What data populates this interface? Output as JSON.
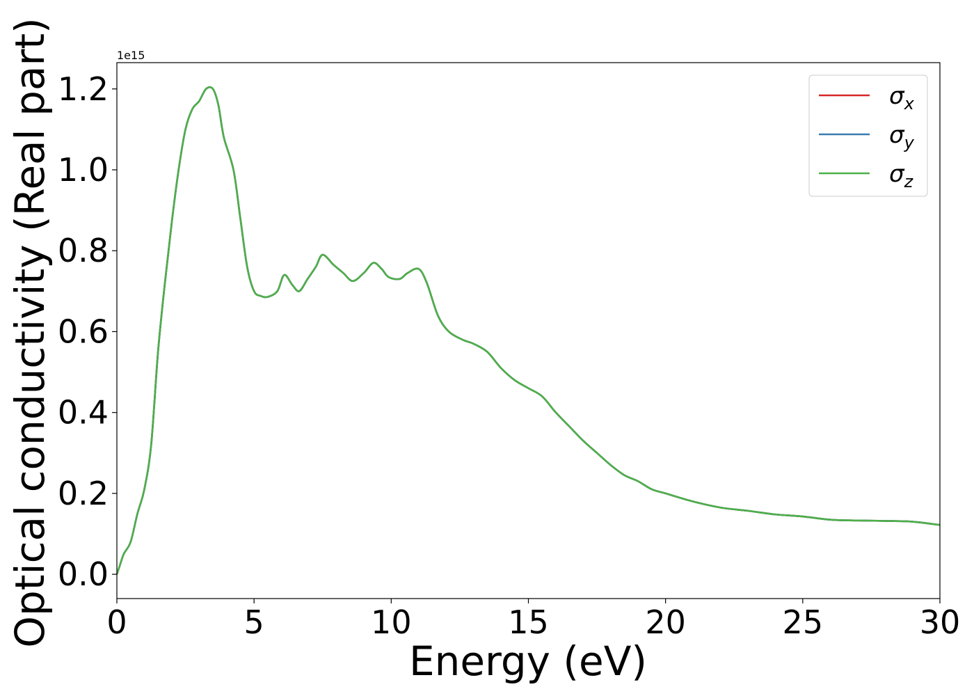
{
  "chart_data": {
    "type": "line",
    "xlabel": "Energy (eV)",
    "ylabel": "Optical conductivity (Real part)",
    "y_offset_text": "1e15",
    "xlim": [
      0,
      30
    ],
    "ylim": [
      -0.06,
      1.265
    ],
    "y_scale_factor": 1000000000000000.0,
    "x_ticks": [
      0,
      5,
      10,
      15,
      20,
      25,
      30
    ],
    "x_tick_labels": [
      "0",
      "5",
      "10",
      "15",
      "20",
      "25",
      "30"
    ],
    "y_ticks": [
      0.0,
      0.2,
      0.4,
      0.6,
      0.8,
      1.0,
      1.2
    ],
    "y_tick_labels": [
      "0.0",
      "0.2",
      "0.4",
      "0.6",
      "0.8",
      "1.0",
      "1.2"
    ],
    "grid": false,
    "legend_placement": "top-right",
    "x": [
      0,
      0.1,
      0.25,
      0.5,
      0.75,
      1.0,
      1.25,
      1.5,
      1.75,
      2.0,
      2.25,
      2.5,
      2.75,
      3.0,
      3.25,
      3.5,
      3.7,
      3.9,
      4.25,
      4.5,
      4.75,
      5.0,
      5.25,
      5.5,
      5.85,
      6.1,
      6.4,
      6.65,
      6.95,
      7.25,
      7.5,
      7.9,
      8.25,
      8.6,
      9.0,
      9.35,
      9.65,
      9.9,
      10.3,
      10.6,
      11.0,
      11.3,
      11.7,
      12.1,
      12.6,
      13.0,
      13.5,
      14.0,
      14.5,
      15.0,
      15.5,
      16.0,
      16.5,
      17.0,
      17.5,
      18.0,
      18.5,
      19.0,
      19.5,
      20.0,
      21.0,
      22.0,
      23.0,
      24.0,
      25.0,
      26.0,
      27.0,
      28.0,
      29.0,
      30.0
    ],
    "series": [
      {
        "name": "σx",
        "color": "#d62728",
        "values": [
          0.0,
          0.02,
          0.05,
          0.08,
          0.15,
          0.21,
          0.32,
          0.55,
          0.72,
          0.87,
          1.0,
          1.1,
          1.15,
          1.17,
          1.2,
          1.2,
          1.16,
          1.08,
          1.0,
          0.88,
          0.76,
          0.7,
          0.688,
          0.686,
          0.7,
          0.74,
          0.715,
          0.7,
          0.73,
          0.76,
          0.79,
          0.765,
          0.745,
          0.725,
          0.745,
          0.77,
          0.755,
          0.735,
          0.73,
          0.745,
          0.755,
          0.72,
          0.64,
          0.6,
          0.58,
          0.57,
          0.55,
          0.51,
          0.48,
          0.46,
          0.44,
          0.4,
          0.365,
          0.33,
          0.3,
          0.27,
          0.245,
          0.23,
          0.21,
          0.2,
          0.18,
          0.165,
          0.157,
          0.148,
          0.143,
          0.135,
          0.133,
          0.132,
          0.13,
          0.122
        ]
      },
      {
        "name": "σy",
        "color": "#3a7bb0",
        "values": [
          0.0,
          0.02,
          0.05,
          0.08,
          0.15,
          0.21,
          0.32,
          0.55,
          0.72,
          0.87,
          1.0,
          1.1,
          1.15,
          1.17,
          1.2,
          1.2,
          1.16,
          1.08,
          1.0,
          0.88,
          0.76,
          0.7,
          0.688,
          0.686,
          0.7,
          0.74,
          0.715,
          0.7,
          0.73,
          0.76,
          0.79,
          0.765,
          0.745,
          0.725,
          0.745,
          0.77,
          0.755,
          0.735,
          0.73,
          0.745,
          0.755,
          0.72,
          0.64,
          0.6,
          0.58,
          0.57,
          0.55,
          0.51,
          0.48,
          0.46,
          0.44,
          0.4,
          0.365,
          0.33,
          0.3,
          0.27,
          0.245,
          0.23,
          0.21,
          0.2,
          0.18,
          0.165,
          0.157,
          0.148,
          0.143,
          0.135,
          0.133,
          0.132,
          0.13,
          0.122
        ]
      },
      {
        "name": "σz",
        "color": "#4daf4a",
        "values": [
          0.0,
          0.02,
          0.05,
          0.08,
          0.15,
          0.21,
          0.32,
          0.55,
          0.72,
          0.87,
          1.0,
          1.1,
          1.15,
          1.17,
          1.2,
          1.2,
          1.16,
          1.08,
          1.0,
          0.88,
          0.76,
          0.7,
          0.688,
          0.686,
          0.7,
          0.74,
          0.715,
          0.7,
          0.73,
          0.76,
          0.79,
          0.765,
          0.745,
          0.725,
          0.745,
          0.77,
          0.755,
          0.735,
          0.73,
          0.745,
          0.755,
          0.72,
          0.64,
          0.6,
          0.58,
          0.57,
          0.55,
          0.51,
          0.48,
          0.46,
          0.44,
          0.4,
          0.365,
          0.33,
          0.3,
          0.27,
          0.245,
          0.23,
          0.21,
          0.2,
          0.18,
          0.165,
          0.157,
          0.148,
          0.143,
          0.135,
          0.133,
          0.132,
          0.13,
          0.122
        ]
      }
    ],
    "legend": [
      {
        "symbol": "σ",
        "subscript": "x",
        "color": "#d62728"
      },
      {
        "symbol": "σ",
        "subscript": "y",
        "color": "#3a7bb0"
      },
      {
        "symbol": "σ",
        "subscript": "z",
        "color": "#4daf4a"
      }
    ]
  }
}
